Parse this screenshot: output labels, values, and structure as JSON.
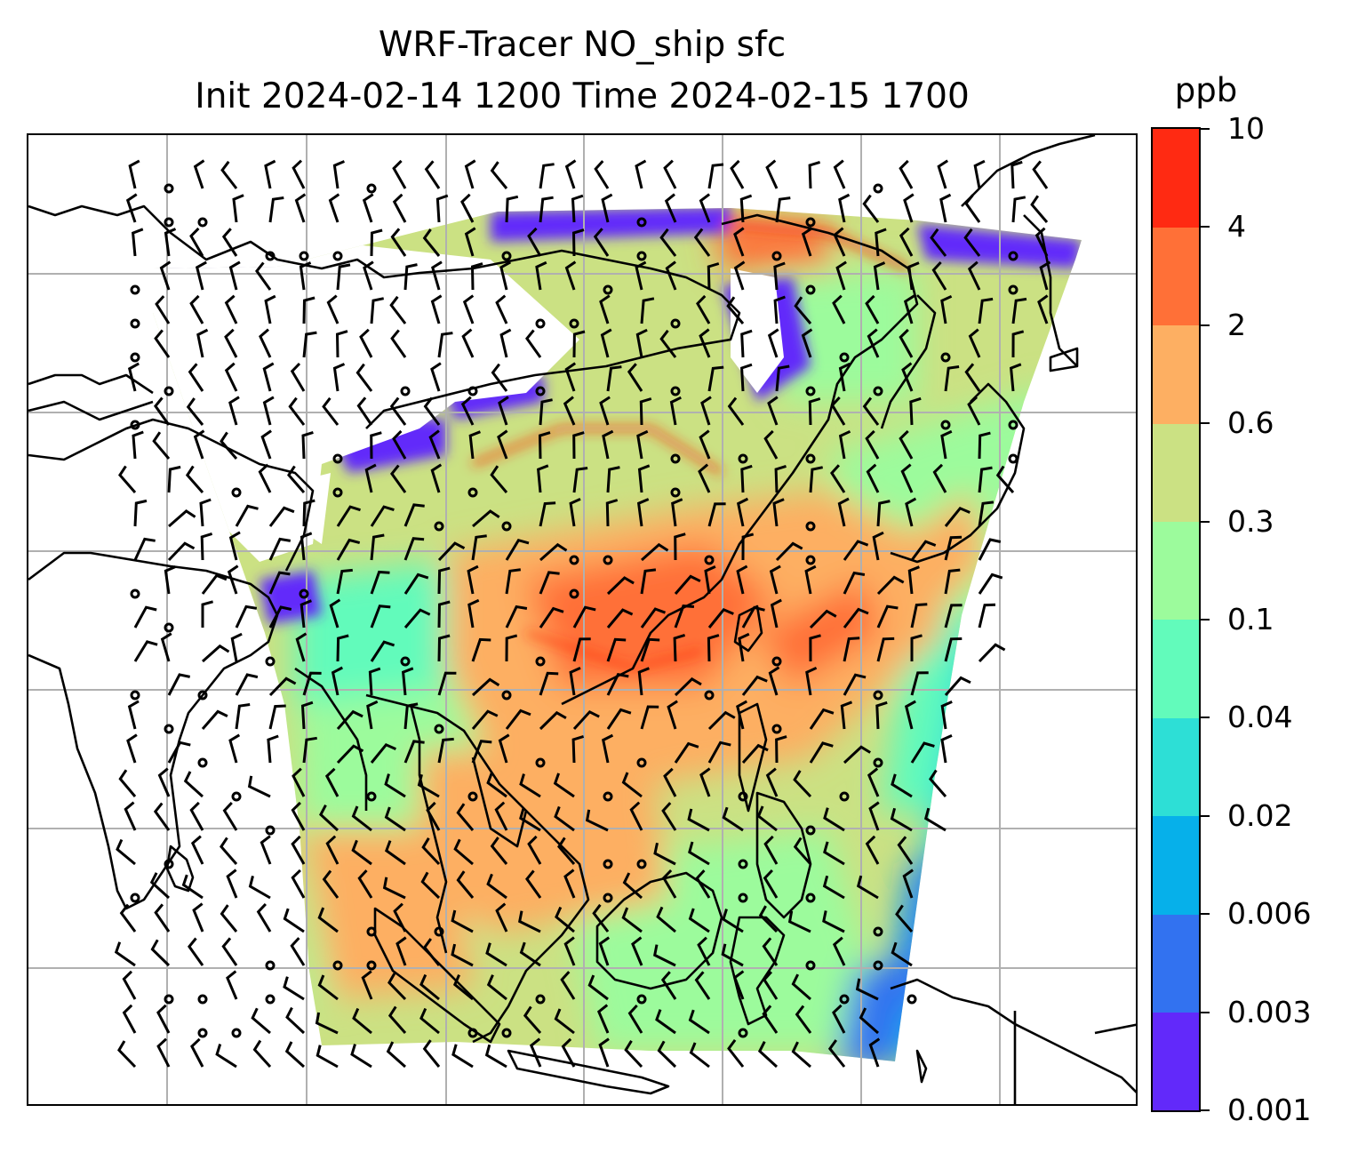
{
  "title": {
    "line1": "WRF-Tracer NO_ship sfc",
    "line2": "Init 2024-02-14 1200 Time 2024-02-15 1700"
  },
  "colorbar": {
    "unit": "ppb",
    "levels": [
      "0.001",
      "0.003",
      "0.006",
      "0.02",
      "0.04",
      "0.1",
      "0.3",
      "0.6",
      "2",
      "4",
      "10"
    ],
    "colors": [
      "#6229fa",
      "#3272f0",
      "#06b0ea",
      "#2ddfd6",
      "#62fbbb",
      "#9cfb9c",
      "#cbe183",
      "#fdaf62",
      "#ff7037",
      "#ff2a12"
    ]
  },
  "map": {
    "region": "East Asia / Western Pacific",
    "coastline_color": "#000000",
    "gridline_color": "#b0b0b0",
    "wind_barbs": true
  }
}
